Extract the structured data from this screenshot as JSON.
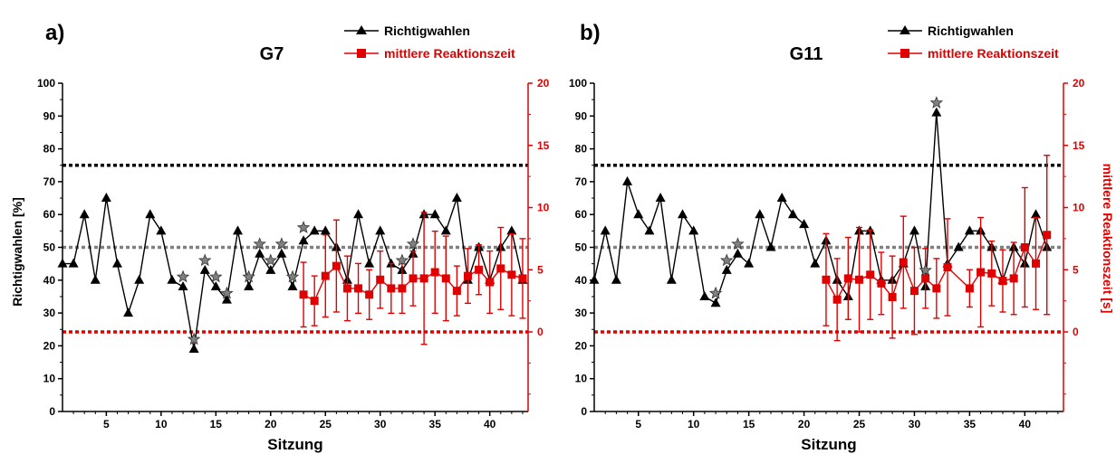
{
  "chart_data": [
    {
      "type": "line",
      "panel_label": "a)",
      "title": "G7",
      "xlabel": "Sitzung",
      "ylabel": "Richtigwahlen [%]",
      "y2label": "",
      "xlim": [
        1,
        43.5
      ],
      "ylim": [
        0,
        100
      ],
      "y2lim": [
        -6.4,
        20
      ],
      "xticks": [
        5,
        10,
        15,
        20,
        25,
        30,
        35,
        40
      ],
      "yticks": [
        0,
        10,
        20,
        30,
        40,
        50,
        60,
        70,
        80,
        90,
        100
      ],
      "y2ticks": [
        0,
        5,
        10,
        15,
        20
      ],
      "legend": {
        "position": "top-right",
        "entries": [
          "Richtigwahlen",
          "mittlere Reaktionszeit"
        ]
      },
      "reference_lines": [
        {
          "value": 75,
          "axis": "left",
          "color": "#000000"
        },
        {
          "value": 50,
          "axis": "left",
          "color": "#808080"
        },
        {
          "value": 0,
          "axis": "right",
          "color": "#e00000"
        }
      ],
      "colors": {
        "richtigwahlen": "#000000",
        "reaktionszeit": "#e00000",
        "star": "#808080"
      },
      "series": [
        {
          "name": "Richtigwahlen",
          "x": [
            1,
            2,
            3,
            4,
            5,
            6,
            7,
            8,
            9,
            10,
            11,
            12,
            13,
            14,
            15,
            16,
            17,
            18,
            19,
            20,
            21,
            22,
            23,
            24,
            25,
            26,
            27,
            28,
            29,
            30,
            31,
            32,
            33,
            34,
            35,
            36,
            37,
            38,
            39,
            40,
            41,
            42,
            43
          ],
          "y": [
            45,
            45,
            60,
            40,
            65,
            45,
            30,
            40,
            60,
            55,
            40,
            38,
            19,
            43,
            38,
            34,
            55,
            38,
            48,
            43,
            48,
            38,
            52,
            55,
            55,
            50,
            40,
            60,
            45,
            55,
            45,
            43,
            48,
            60,
            60,
            55,
            65,
            40,
            50,
            40,
            50,
            55,
            40
          ]
        },
        {
          "name": "mittlere Reaktionszeit",
          "x": [
            23,
            24,
            25,
            26,
            27,
            28,
            29,
            30,
            31,
            32,
            33,
            34,
            35,
            36,
            37,
            38,
            39,
            40,
            41,
            42,
            43
          ],
          "y": [
            3.0,
            2.5,
            4.5,
            5.3,
            3.5,
            3.5,
            3.0,
            4.2,
            3.5,
            3.5,
            4.3,
            4.3,
            4.8,
            4.3,
            3.3,
            4.5,
            5.0,
            4.0,
            5.1,
            4.6,
            4.3
          ],
          "error": [
            2.6,
            2.0,
            3.3,
            3.7,
            2.6,
            2.0,
            2.0,
            2.3,
            2.0,
            2.0,
            2.2,
            5.3,
            3.3,
            3.4,
            2.0,
            2.2,
            2.0,
            2.5,
            3.3,
            3.3,
            3.2
          ]
        }
      ],
      "significance_markers": {
        "x": [
          12,
          13,
          14,
          15,
          16,
          18,
          19,
          20,
          21,
          22,
          23,
          32,
          33
        ],
        "y": [
          41,
          22,
          46,
          41,
          36,
          41,
          51,
          46,
          51,
          41,
          56,
          46,
          51
        ]
      }
    },
    {
      "type": "line",
      "panel_label": "b)",
      "title": "G11",
      "xlabel": "Sitzung",
      "ylabel": "",
      "y2label": "mittlere Reaktionszeit [s]",
      "xlim": [
        1,
        43.5
      ],
      "ylim": [
        0,
        100
      ],
      "y2lim": [
        -6.4,
        20
      ],
      "xticks": [
        5,
        10,
        15,
        20,
        25,
        30,
        35,
        40
      ],
      "yticks": [
        0,
        10,
        20,
        30,
        40,
        50,
        60,
        70,
        80,
        90,
        100
      ],
      "y2ticks": [
        0,
        5,
        10,
        15,
        20
      ],
      "legend": {
        "position": "top-right",
        "entries": [
          "Richtigwahlen",
          "mittlere Reaktionszeit"
        ]
      },
      "reference_lines": [
        {
          "value": 75,
          "axis": "left",
          "color": "#000000"
        },
        {
          "value": 50,
          "axis": "left",
          "color": "#808080"
        },
        {
          "value": 0,
          "axis": "right",
          "color": "#e00000"
        }
      ],
      "colors": {
        "richtigwahlen": "#000000",
        "reaktionszeit": "#e00000",
        "star": "#808080"
      },
      "series": [
        {
          "name": "Richtigwahlen",
          "x": [
            1,
            2,
            3,
            4,
            5,
            6,
            7,
            8,
            9,
            10,
            11,
            12,
            13,
            14,
            15,
            16,
            17,
            18,
            19,
            20,
            21,
            22,
            23,
            24,
            25,
            26,
            27,
            28,
            29,
            30,
            31,
            32,
            33,
            34,
            35,
            36,
            37,
            38,
            39,
            40,
            41,
            42
          ],
          "y": [
            40,
            55,
            40,
            70,
            60,
            55,
            65,
            40,
            60,
            55,
            35,
            33,
            43,
            48,
            45,
            60,
            50,
            65,
            60,
            57,
            45,
            52,
            40,
            35,
            55,
            55,
            40,
            40,
            45,
            55,
            38,
            91,
            45,
            50,
            55,
            55,
            50,
            40,
            50,
            45,
            60,
            50
          ]
        },
        {
          "name": "mittlere Reaktionszeit",
          "x": [
            22,
            23,
            24,
            25,
            26,
            27,
            28,
            29,
            30,
            31,
            32,
            33,
            35,
            36,
            37,
            38,
            39,
            40,
            41,
            42
          ],
          "y": [
            4.2,
            2.6,
            4.3,
            4.2,
            4.6,
            3.9,
            2.8,
            5.6,
            3.3,
            4.3,
            3.5,
            5.2,
            3.5,
            4.8,
            4.7,
            4.1,
            4.3,
            6.8,
            5.5,
            7.8
          ],
          "error": [
            3.7,
            3.3,
            3.3,
            4.2,
            3.6,
            2.5,
            3.3,
            3.7,
            3.5,
            2.4,
            2.4,
            3.9,
            1.5,
            4.4,
            2.6,
            2.5,
            2.9,
            4.8,
            3.7,
            6.4
          ]
        }
      ],
      "significance_markers": {
        "x": [
          12,
          13,
          14,
          31,
          32
        ],
        "y": [
          36,
          46,
          51,
          43,
          94
        ]
      }
    }
  ]
}
